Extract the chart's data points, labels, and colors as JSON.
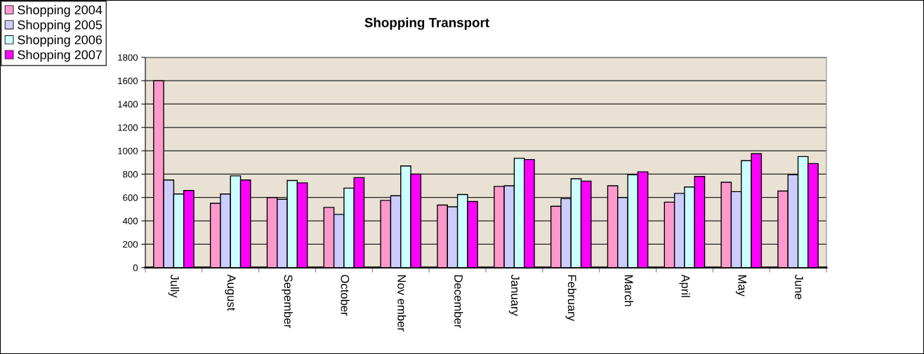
{
  "chart_data": {
    "type": "bar",
    "title": "Shopping Transport",
    "categories": [
      "Jully",
      "August",
      "Sepember",
      "October",
      "Nov ember",
      "December",
      "January",
      "February",
      "March",
      "April",
      "May",
      "June"
    ],
    "series": [
      {
        "name": "Shopping 2004",
        "color": "#ff99cc",
        "values": [
          1600,
          550,
          600,
          515,
          575,
          535,
          695,
          525,
          700,
          560,
          730,
          655
        ]
      },
      {
        "name": "Shopping 2005",
        "color": "#ccccff",
        "values": [
          750,
          630,
          585,
          455,
          615,
          520,
          700,
          590,
          600,
          635,
          650,
          795
        ]
      },
      {
        "name": "Shopping 2006",
        "color": "#ccffff",
        "values": [
          630,
          785,
          745,
          680,
          870,
          625,
          935,
          760,
          795,
          690,
          915,
          950
        ]
      },
      {
        "name": "Shopping 2007",
        "color": "#ff00ff",
        "values": [
          660,
          750,
          725,
          770,
          800,
          565,
          925,
          740,
          820,
          780,
          975,
          890
        ]
      }
    ],
    "ylim": [
      0,
      1800
    ],
    "yticks": [
      0,
      200,
      400,
      600,
      800,
      1000,
      1200,
      1400,
      1600,
      1800
    ],
    "grid": "y",
    "legend": "top left"
  }
}
